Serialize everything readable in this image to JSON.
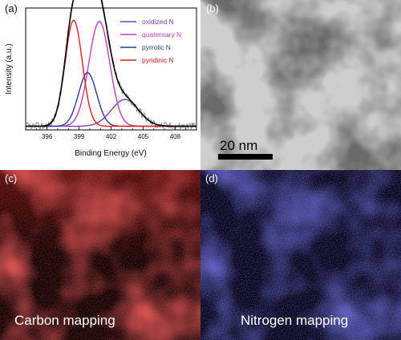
{
  "panels": {
    "a": {
      "label": "(a)"
    },
    "b": {
      "label": "(b)",
      "scalebar": "20 nm"
    },
    "c": {
      "label": "(c)",
      "caption": "Carbon mapping"
    },
    "d": {
      "label": "(d)",
      "caption": "Nitrogen mapping"
    }
  },
  "chart_data": {
    "type": "line",
    "xlabel": "Binding Energy (eV)",
    "ylabel": "Intensity (a.u.)",
    "xlim": [
      394,
      410
    ],
    "x_ticks": [
      396,
      399,
      402,
      405,
      408
    ],
    "grid": false,
    "legend_position": "top-right",
    "colors": {
      "oxidized": "#7a3fb8",
      "quaternary": "#c040c0",
      "pyrrolic": "#2f3aa0",
      "pyridinic": "#e02020",
      "envelope": "#000000",
      "raw": "#888888"
    },
    "series": [
      {
        "name": "oxidized N",
        "key": "oxidized",
        "center": 403.3,
        "fwhm": 3.0,
        "height": 0.22
      },
      {
        "name": "quaternary N",
        "key": "quaternary",
        "center": 400.9,
        "fwhm": 2.3,
        "height": 0.86
      },
      {
        "name": "pyrrolic N",
        "key": "pyrrolic",
        "center": 399.8,
        "fwhm": 2.0,
        "height": 0.44
      },
      {
        "name": "pyridinic N",
        "key": "pyridinic",
        "center": 398.5,
        "fwhm": 1.9,
        "height": 0.87
      }
    ],
    "baseline": 0.03
  }
}
